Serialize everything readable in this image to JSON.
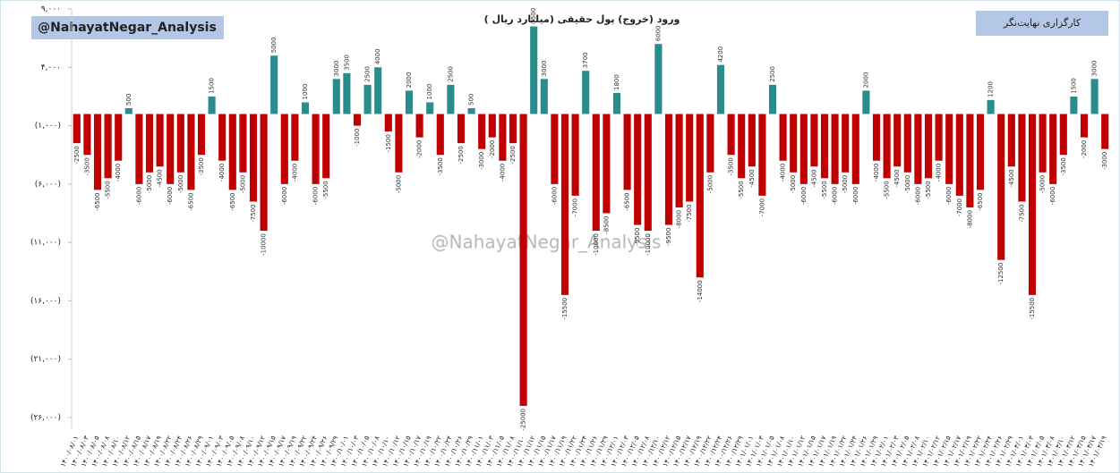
{
  "brand": "@NahayatNegar_Analysis",
  "broker": "کارگزاری نهایت‌نگر",
  "watermark": "@NahayatNegar_Analysis",
  "chart_data": {
    "type": "bar",
    "title": "ورود (خروج) پول حقیقی (میلیارد ریال )",
    "positive_color": "#2a8c8c",
    "negative_color": "#c00000",
    "ylim": [
      -27000,
      9000
    ],
    "yticks": [
      {
        "value": 9000,
        "label": "۹,۰۰۰"
      },
      {
        "value": 4000,
        "label": "۴,۰۰۰"
      },
      {
        "value": -1000,
        "label": "(۱,۰۰۰)"
      },
      {
        "value": -6000,
        "label": "(۶,۰۰۰)"
      },
      {
        "value": -11000,
        "label": "(۱۱,۰۰۰)"
      },
      {
        "value": -16000,
        "label": "(۱۶,۰۰۰)"
      },
      {
        "value": -21000,
        "label": "(۲۱,۰۰۰)"
      },
      {
        "value": -26000,
        "label": "(۲۶,۰۰۰)"
      }
    ],
    "categories": [
      "۱۴۰۰/۰۸/۰۱",
      "۱۴۰۰/۰۸/۰۳",
      "۱۴۰۰/۰۸/۰۵",
      "۱۴۰۰/۰۸/۰۸",
      "۱۴۰۰/۰۸/۱۰",
      "۱۴۰۰/۰۸/۱۲",
      "۱۴۰۰/۰۸/۱۵",
      "۱۴۰۰/۰۸/۱۷",
      "۱۴۰۰/۰۸/۱۹",
      "۱۴۰۰/۰۸/۲۲",
      "۱۴۰۰/۰۸/۲۴",
      "۱۴۰۰/۰۸/۲۶",
      "۱۴۰۰/۰۸/۲۹",
      "۱۴۰۰/۰۹/۰۱",
      "۱۴۰۰/۰۹/۰۳",
      "۱۴۰۰/۰۹/۰۵",
      "۱۴۰۰/۰۹/۰۸",
      "۱۴۰۰/۰۹/۱۰",
      "۱۴۰۰/۰۹/۱۲",
      "۱۴۰۰/۰۹/۱۵",
      "۱۴۰۰/۰۹/۱۷",
      "۱۴۰۰/۰۹/۱۹",
      "۱۴۰۰/۰۹/۲۲",
      "۱۴۰۰/۰۹/۲۴",
      "۱۴۰۰/۰۹/۲۶",
      "۱۴۰۰/۰۹/۲۹",
      "۱۴۰۰/۱۰/۰۱",
      "۱۴۰۰/۱۰/۰۳",
      "۱۴۰۰/۱۰/۰۵",
      "۱۴۰۰/۱۰/۰۸",
      "۱۴۰۰/۱۰/۱۰",
      "۱۴۰۰/۱۰/۱۲",
      "۱۴۰۰/۱۰/۱۵",
      "۱۴۰۰/۱۰/۱۷",
      "۱۴۰۰/۱۰/۱۹",
      "۱۴۰۰/۱۰/۲۲",
      "۱۴۰۰/۱۰/۲۴",
      "۱۴۰۰/۱۰/۲۶",
      "۱۴۰۰/۱۰/۲۹",
      "۱۴۰۰/۱۱/۰۱",
      "۱۴۰۰/۱۱/۰۳",
      "۱۴۰۰/۱۱/۰۵",
      "۱۴۰۰/۱۱/۰۸",
      "۱۴۰۰/۱۱/۱۰",
      "۱۴۰۰/۱۱/۱۲",
      "۱۴۰۰/۱۱/۱۵",
      "۱۴۰۰/۱۱/۱۷",
      "۱۴۰۰/۱۱/۱۹",
      "۱۴۰۰/۱۱/۲۲",
      "۱۴۰۰/۱۱/۲۴",
      "۱۴۰۰/۱۱/۲۶",
      "۱۴۰۰/۱۱/۲۹",
      "۱۴۰۰/۱۲/۰۱",
      "۱۴۰۰/۱۲/۰۳",
      "۱۴۰۰/۱۲/۰۵",
      "۱۴۰۰/۱۲/۰۸",
      "۱۴۰۰/۱۲/۱۰",
      "۱۴۰۰/۱۲/۱۲",
      "۱۴۰۰/۱۲/۱۵",
      "۱۴۰۰/۱۲/۱۷",
      "۱۴۰۰/۱۲/۱۹",
      "۱۴۰۰/۱۲/۲۲",
      "۱۴۰۰/۱۲/۲۴",
      "۱۴۰۰/۱۲/۲۶",
      "۱۴۰۰/۱۲/۲۹",
      "۱۴۰۱/۰۱/۰۱",
      "۱۴۰۱/۰۱/۰۳",
      "۱۴۰۱/۰۱/۰۵",
      "۱۴۰۱/۰۱/۰۸",
      "۱۴۰۱/۰۱/۱۰",
      "۱۴۰۱/۰۱/۱۲",
      "۱۴۰۱/۰۱/۱۵",
      "۱۴۰۱/۰۱/۱۷",
      "۱۴۰۱/۰۱/۱۹",
      "۱۴۰۱/۰۱/۲۲",
      "۱۴۰۱/۰۱/۲۴",
      "۱۴۰۱/۰۱/۲۶",
      "۱۴۰۱/۰۱/۲۹",
      "۱۴۰۱/۰۲/۰۱",
      "۱۴۰۱/۰۲/۰۳",
      "۱۴۰۱/۰۲/۰۵",
      "۱۴۰۱/۰۲/۰۸",
      "۱۴۰۱/۰۲/۱۰",
      "۱۴۰۱/۰۲/۱۲",
      "۱۴۰۱/۰۲/۱۵",
      "۱۴۰۱/۰۲/۱۷",
      "۱۴۰۱/۰۲/۱۹",
      "۱۴۰۱/۰۲/۲۲",
      "۱۴۰۱/۰۲/۲۴",
      "۱۴۰۱/۰۲/۲۶",
      "۱۴۰۱/۰۲/۲۹",
      "۱۴۰۱/۰۳/۰۱",
      "۱۴۰۱/۰۳/۰۳",
      "۱۴۰۱/۰۳/۰۵",
      "۱۴۰۱/۰۳/۰۸",
      "۱۴۰۱/۰۳/۱۰",
      "۱۴۰۱/۰۳/۱۲",
      "۱۴۰۱/۰۳/۱۵",
      "۱۴۰۱/۰۳/۱۷",
      "۱۴۰۱/۰۳/۱۹"
    ],
    "values": [
      -2500,
      -3500,
      -6500,
      -5500,
      -4000,
      500,
      -6000,
      -5000,
      -4500,
      -6000,
      -5000,
      -6500,
      -3500,
      1500,
      -4000,
      -6500,
      -5000,
      -7500,
      -10000,
      5000,
      -6000,
      -4000,
      1000,
      -6000,
      -5500,
      3000,
      3500,
      -1000,
      2500,
      4000,
      -1500,
      -5000,
      2000,
      -2000,
      1000,
      -3500,
      2500,
      -2500,
      500,
      -3000,
      -2000,
      -4000,
      -2500,
      -25000,
      7500,
      3000,
      -6000,
      -15500,
      -7000,
      3700,
      -10000,
      -8500,
      1800,
      -6500,
      -9500,
      -10000,
      6000,
      -9500,
      -8000,
      -7500,
      -14000,
      -5000,
      4200,
      -3500,
      -5500,
      -4500,
      -7000,
      2500,
      -4000,
      -5000,
      -6000,
      -4500,
      -5500,
      -6000,
      -5000,
      -6000,
      2000,
      -4000,
      -5500,
      -4500,
      -5000,
      -6000,
      -5500,
      -4000,
      -6000,
      -7000,
      -8000,
      -6500,
      1200,
      -12500,
      -4500,
      -7500,
      -15500,
      -5000,
      -6000,
      -3500,
      1500,
      -2000,
      3000,
      -3000
    ]
  }
}
